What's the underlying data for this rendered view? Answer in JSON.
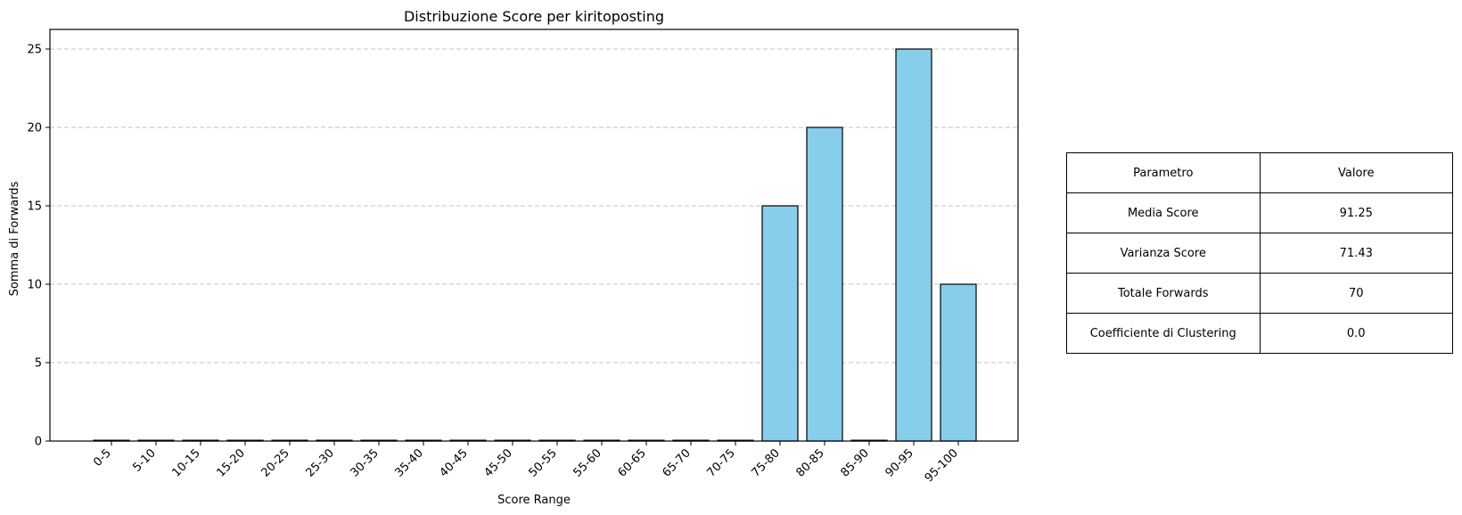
{
  "chart_data": {
    "type": "bar",
    "title": "Distribuzione Score per kiritoposting",
    "xlabel": "Score Range",
    "ylabel": "Somma di Forwards",
    "categories": [
      "0-5",
      "5-10",
      "10-15",
      "15-20",
      "20-25",
      "25-30",
      "30-35",
      "35-40",
      "40-45",
      "45-50",
      "50-55",
      "55-60",
      "60-65",
      "65-70",
      "70-75",
      "75-80",
      "80-85",
      "85-90",
      "90-95",
      "95-100"
    ],
    "values": [
      0,
      0,
      0,
      0,
      0,
      0,
      0,
      0,
      0,
      0,
      0,
      0,
      0,
      0,
      0,
      15,
      20,
      0,
      25,
      10
    ],
    "ylim": [
      0,
      26.25
    ],
    "yticks": [
      0,
      5,
      10,
      15,
      20,
      25
    ],
    "grid": "y-dashed",
    "bar_color": "#87ceeb",
    "edge_color": "#000000"
  },
  "table": {
    "headers": [
      "Parametro",
      "Valore"
    ],
    "rows": [
      [
        "Media Score",
        "91.25"
      ],
      [
        "Varianza Score",
        "71.43"
      ],
      [
        "Totale Forwards",
        "70"
      ],
      [
        "Coefficiente di Clustering",
        "0.0"
      ]
    ]
  }
}
